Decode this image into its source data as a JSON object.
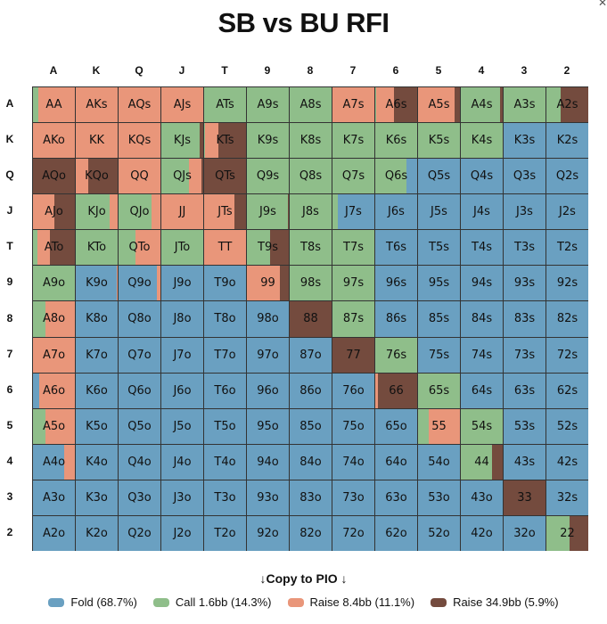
{
  "title": "SB vs BU RFI",
  "ranks": [
    "A",
    "K",
    "Q",
    "J",
    "T",
    "9",
    "8",
    "7",
    "6",
    "5",
    "4",
    "3",
    "2"
  ],
  "colors": {
    "fold": "#6aa0c1",
    "call": "#8fbe8a",
    "raise": "#e9967a",
    "allin": "#744b3e"
  },
  "copy_label": "↓Copy to PIO ↓",
  "legend": [
    {
      "key": "fold",
      "label": "Fold (68.7%)"
    },
    {
      "key": "call",
      "label": "Call 1.6bb (14.3%)"
    },
    {
      "key": "raise",
      "label": "Raise 8.4bb (11.1%)"
    },
    {
      "key": "allin",
      "label": "Raise 34.9bb (5.9%)"
    }
  ],
  "grid": [
    [
      {
        "h": "AA",
        "mix": {
          "call": 0.13,
          "raise": 0.87
        }
      },
      {
        "h": "AKs",
        "mix": {
          "raise": 1
        }
      },
      {
        "h": "AQs",
        "mix": {
          "raise": 1
        }
      },
      {
        "h": "AJs",
        "mix": {
          "raise": 1
        }
      },
      {
        "h": "ATs",
        "mix": {
          "call": 1
        }
      },
      {
        "h": "A9s",
        "mix": {
          "call": 1
        }
      },
      {
        "h": "A8s",
        "mix": {
          "call": 1
        }
      },
      {
        "h": "A7s",
        "mix": {
          "raise": 1
        }
      },
      {
        "h": "A6s",
        "mix": {
          "call": 0.03,
          "raise": 0.42,
          "allin": 0.55
        }
      },
      {
        "h": "A5s",
        "mix": {
          "raise": 0.88,
          "allin": 0.12
        }
      },
      {
        "h": "A4s",
        "mix": {
          "call": 0.93,
          "allin": 0.07
        }
      },
      {
        "h": "A3s",
        "mix": {
          "call": 1
        }
      },
      {
        "h": "A2s",
        "mix": {
          "call": 0.35,
          "allin": 0.65
        }
      }
    ],
    [
      {
        "h": "AKo",
        "mix": {
          "raise": 1
        }
      },
      {
        "h": "KK",
        "mix": {
          "raise": 1
        }
      },
      {
        "h": "KQs",
        "mix": {
          "raise": 1
        }
      },
      {
        "h": "KJs",
        "mix": {
          "call": 0.91,
          "allin": 0.09
        }
      },
      {
        "h": "KTs",
        "mix": {
          "call": 0.03,
          "raise": 0.3,
          "allin": 0.67
        }
      },
      {
        "h": "K9s",
        "mix": {
          "call": 1
        }
      },
      {
        "h": "K8s",
        "mix": {
          "call": 1
        }
      },
      {
        "h": "K7s",
        "mix": {
          "call": 1
        }
      },
      {
        "h": "K6s",
        "mix": {
          "call": 1
        }
      },
      {
        "h": "K5s",
        "mix": {
          "call": 1
        }
      },
      {
        "h": "K4s",
        "mix": {
          "call": 1
        }
      },
      {
        "h": "K3s",
        "mix": {
          "fold": 1
        }
      },
      {
        "h": "K2s",
        "mix": {
          "fold": 1
        }
      }
    ],
    [
      {
        "h": "AQo",
        "mix": {
          "allin": 1
        }
      },
      {
        "h": "KQo",
        "mix": {
          "raise": 0.3,
          "allin": 0.7
        }
      },
      {
        "h": "QQ",
        "mix": {
          "raise": 1
        }
      },
      {
        "h": "QJs",
        "mix": {
          "call": 0.66,
          "raise": 0.3,
          "allin": 0.04
        }
      },
      {
        "h": "QTs",
        "mix": {
          "allin": 1
        }
      },
      {
        "h": "Q9s",
        "mix": {
          "call": 1
        }
      },
      {
        "h": "Q8s",
        "mix": {
          "call": 1
        }
      },
      {
        "h": "Q7s",
        "mix": {
          "call": 1
        }
      },
      {
        "h": "Q6s",
        "mix": {
          "call": 0.75,
          "fold": 0.25
        }
      },
      {
        "h": "Q5s",
        "mix": {
          "fold": 1
        }
      },
      {
        "h": "Q4s",
        "mix": {
          "fold": 1
        }
      },
      {
        "h": "Q3s",
        "mix": {
          "fold": 1
        }
      },
      {
        "h": "Q2s",
        "mix": {
          "fold": 1
        }
      }
    ],
    [
      {
        "h": "AJo",
        "mix": {
          "raise": 0.5,
          "allin": 0.5
        }
      },
      {
        "h": "KJo",
        "mix": {
          "call": 0.8,
          "raise": 0.2
        }
      },
      {
        "h": "QJo",
        "mix": {
          "call": 0.78,
          "raise": 0.22
        }
      },
      {
        "h": "JJ",
        "mix": {
          "raise": 1
        }
      },
      {
        "h": "JTs",
        "mix": {
          "raise": 0.72,
          "allin": 0.28
        }
      },
      {
        "h": "J9s",
        "mix": {
          "call": 0.97,
          "allin": 0.03
        }
      },
      {
        "h": "J8s",
        "mix": {
          "call": 1
        }
      },
      {
        "h": "J7s",
        "mix": {
          "call": 0.13,
          "fold": 0.87
        }
      },
      {
        "h": "J6s",
        "mix": {
          "fold": 1
        }
      },
      {
        "h": "J5s",
        "mix": {
          "fold": 1
        }
      },
      {
        "h": "J4s",
        "mix": {
          "fold": 1
        }
      },
      {
        "h": "J3s",
        "mix": {
          "fold": 1
        }
      },
      {
        "h": "J2s",
        "mix": {
          "fold": 1
        }
      }
    ],
    [
      {
        "h": "ATo",
        "mix": {
          "call": 0.1,
          "raise": 0.3,
          "allin": 0.6
        }
      },
      {
        "h": "KTo",
        "mix": {
          "call": 1
        }
      },
      {
        "h": "QTo",
        "mix": {
          "call": 0.4,
          "raise": 0.6
        }
      },
      {
        "h": "JTo",
        "mix": {
          "call": 1
        }
      },
      {
        "h": "TT",
        "mix": {
          "raise": 1
        }
      },
      {
        "h": "T9s",
        "mix": {
          "call": 0.55,
          "allin": 0.45
        }
      },
      {
        "h": "T8s",
        "mix": {
          "call": 1
        }
      },
      {
        "h": "T7s",
        "mix": {
          "call": 1
        }
      },
      {
        "h": "T6s",
        "mix": {
          "fold": 1
        }
      },
      {
        "h": "T5s",
        "mix": {
          "fold": 1
        }
      },
      {
        "h": "T4s",
        "mix": {
          "fold": 1
        }
      },
      {
        "h": "T3s",
        "mix": {
          "fold": 1
        }
      },
      {
        "h": "T2s",
        "mix": {
          "fold": 1
        }
      }
    ],
    [
      {
        "h": "A9o",
        "mix": {
          "call": 1
        }
      },
      {
        "h": "K9o",
        "mix": {
          "fold": 0.97,
          "raise": 0.03
        }
      },
      {
        "h": "Q9o",
        "mix": {
          "fold": 0.92,
          "raise": 0.08
        }
      },
      {
        "h": "J9o",
        "mix": {
          "fold": 1
        }
      },
      {
        "h": "T9o",
        "mix": {
          "fold": 1
        }
      },
      {
        "h": "99",
        "mix": {
          "raise": 0.78,
          "allin": 0.22
        }
      },
      {
        "h": "98s",
        "mix": {
          "call": 1
        }
      },
      {
        "h": "97s",
        "mix": {
          "call": 1
        }
      },
      {
        "h": "96s",
        "mix": {
          "fold": 1
        }
      },
      {
        "h": "95s",
        "mix": {
          "fold": 1
        }
      },
      {
        "h": "94s",
        "mix": {
          "fold": 1
        }
      },
      {
        "h": "93s",
        "mix": {
          "fold": 1
        }
      },
      {
        "h": "92s",
        "mix": {
          "fold": 1
        }
      }
    ],
    [
      {
        "h": "A8o",
        "mix": {
          "call": 0.3,
          "raise": 0.7
        }
      },
      {
        "h": "K8o",
        "mix": {
          "fold": 1
        }
      },
      {
        "h": "Q8o",
        "mix": {
          "fold": 1
        }
      },
      {
        "h": "J8o",
        "mix": {
          "fold": 1
        }
      },
      {
        "h": "T8o",
        "mix": {
          "fold": 1
        }
      },
      {
        "h": "98o",
        "mix": {
          "fold": 1
        }
      },
      {
        "h": "88",
        "mix": {
          "allin": 1
        }
      },
      {
        "h": "87s",
        "mix": {
          "call": 1
        }
      },
      {
        "h": "86s",
        "mix": {
          "fold": 1
        }
      },
      {
        "h": "85s",
        "mix": {
          "fold": 1
        }
      },
      {
        "h": "84s",
        "mix": {
          "fold": 1
        }
      },
      {
        "h": "83s",
        "mix": {
          "fold": 1
        }
      },
      {
        "h": "82s",
        "mix": {
          "fold": 1
        }
      }
    ],
    [
      {
        "h": "A7o",
        "mix": {
          "raise": 1
        }
      },
      {
        "h": "K7o",
        "mix": {
          "fold": 1
        }
      },
      {
        "h": "Q7o",
        "mix": {
          "fold": 1
        }
      },
      {
        "h": "J7o",
        "mix": {
          "fold": 1
        }
      },
      {
        "h": "T7o",
        "mix": {
          "fold": 1
        }
      },
      {
        "h": "97o",
        "mix": {
          "fold": 1
        }
      },
      {
        "h": "87o",
        "mix": {
          "fold": 1
        }
      },
      {
        "h": "77",
        "mix": {
          "allin": 1
        }
      },
      {
        "h": "76s",
        "mix": {
          "call": 1
        }
      },
      {
        "h": "75s",
        "mix": {
          "fold": 1
        }
      },
      {
        "h": "74s",
        "mix": {
          "fold": 1
        }
      },
      {
        "h": "73s",
        "mix": {
          "fold": 1
        }
      },
      {
        "h": "72s",
        "mix": {
          "fold": 1
        }
      }
    ],
    [
      {
        "h": "A6o",
        "mix": {
          "fold": 0.15,
          "raise": 0.85
        }
      },
      {
        "h": "K6o",
        "mix": {
          "fold": 1
        }
      },
      {
        "h": "Q6o",
        "mix": {
          "fold": 1
        }
      },
      {
        "h": "J6o",
        "mix": {
          "fold": 1
        }
      },
      {
        "h": "T6o",
        "mix": {
          "fold": 1
        }
      },
      {
        "h": "96o",
        "mix": {
          "fold": 1
        }
      },
      {
        "h": "86o",
        "mix": {
          "fold": 1
        }
      },
      {
        "h": "76o",
        "mix": {
          "fold": 1
        }
      },
      {
        "h": "66",
        "mix": {
          "raise": 0.06,
          "allin": 0.94
        }
      },
      {
        "h": "65s",
        "mix": {
          "call": 1
        }
      },
      {
        "h": "64s",
        "mix": {
          "fold": 1
        }
      },
      {
        "h": "63s",
        "mix": {
          "fold": 1
        }
      },
      {
        "h": "62s",
        "mix": {
          "fold": 1
        }
      }
    ],
    [
      {
        "h": "A5o",
        "mix": {
          "call": 0.3,
          "raise": 0.7
        }
      },
      {
        "h": "K5o",
        "mix": {
          "fold": 1
        }
      },
      {
        "h": "Q5o",
        "mix": {
          "fold": 1
        }
      },
      {
        "h": "J5o",
        "mix": {
          "fold": 1
        }
      },
      {
        "h": "T5o",
        "mix": {
          "fold": 1
        }
      },
      {
        "h": "95o",
        "mix": {
          "fold": 1
        }
      },
      {
        "h": "85o",
        "mix": {
          "fold": 1
        }
      },
      {
        "h": "75o",
        "mix": {
          "fold": 1
        }
      },
      {
        "h": "65o",
        "mix": {
          "fold": 1
        }
      },
      {
        "h": "55",
        "mix": {
          "call": 0.25,
          "raise": 0.75
        }
      },
      {
        "h": "54s",
        "mix": {
          "call": 1
        }
      },
      {
        "h": "53s",
        "mix": {
          "fold": 1
        }
      },
      {
        "h": "52s",
        "mix": {
          "fold": 1
        }
      }
    ],
    [
      {
        "h": "A4o",
        "mix": {
          "fold": 0.75,
          "raise": 0.25
        }
      },
      {
        "h": "K4o",
        "mix": {
          "fold": 1
        }
      },
      {
        "h": "Q4o",
        "mix": {
          "fold": 1
        }
      },
      {
        "h": "J4o",
        "mix": {
          "fold": 1
        }
      },
      {
        "h": "T4o",
        "mix": {
          "fold": 1
        }
      },
      {
        "h": "94o",
        "mix": {
          "fold": 1
        }
      },
      {
        "h": "84o",
        "mix": {
          "fold": 1
        }
      },
      {
        "h": "74o",
        "mix": {
          "fold": 1
        }
      },
      {
        "h": "64o",
        "mix": {
          "fold": 1
        }
      },
      {
        "h": "54o",
        "mix": {
          "fold": 1
        }
      },
      {
        "h": "44",
        "mix": {
          "call": 0.75,
          "allin": 0.25
        }
      },
      {
        "h": "43s",
        "mix": {
          "fold": 1
        }
      },
      {
        "h": "42s",
        "mix": {
          "fold": 1
        }
      }
    ],
    [
      {
        "h": "A3o",
        "mix": {
          "fold": 1
        }
      },
      {
        "h": "K3o",
        "mix": {
          "fold": 1
        }
      },
      {
        "h": "Q3o",
        "mix": {
          "fold": 1
        }
      },
      {
        "h": "J3o",
        "mix": {
          "fold": 1
        }
      },
      {
        "h": "T3o",
        "mix": {
          "fold": 1
        }
      },
      {
        "h": "93o",
        "mix": {
          "fold": 1
        }
      },
      {
        "h": "83o",
        "mix": {
          "fold": 1
        }
      },
      {
        "h": "73o",
        "mix": {
          "fold": 1
        }
      },
      {
        "h": "63o",
        "mix": {
          "fold": 1
        }
      },
      {
        "h": "53o",
        "mix": {
          "fold": 1
        }
      },
      {
        "h": "43o",
        "mix": {
          "fold": 1
        }
      },
      {
        "h": "33",
        "mix": {
          "allin": 1
        }
      },
      {
        "h": "32s",
        "mix": {
          "fold": 1
        }
      }
    ],
    [
      {
        "h": "A2o",
        "mix": {
          "fold": 1
        }
      },
      {
        "h": "K2o",
        "mix": {
          "fold": 1
        }
      },
      {
        "h": "Q2o",
        "mix": {
          "fold": 1
        }
      },
      {
        "h": "J2o",
        "mix": {
          "fold": 1
        }
      },
      {
        "h": "T2o",
        "mix": {
          "fold": 1
        }
      },
      {
        "h": "92o",
        "mix": {
          "fold": 1
        }
      },
      {
        "h": "82o",
        "mix": {
          "fold": 1
        }
      },
      {
        "h": "72o",
        "mix": {
          "fold": 1
        }
      },
      {
        "h": "62o",
        "mix": {
          "fold": 1
        }
      },
      {
        "h": "52o",
        "mix": {
          "fold": 1
        }
      },
      {
        "h": "42o",
        "mix": {
          "fold": 1
        }
      },
      {
        "h": "32o",
        "mix": {
          "fold": 1
        }
      },
      {
        "h": "22",
        "mix": {
          "call": 0.55,
          "allin": 0.45
        }
      }
    ]
  ]
}
